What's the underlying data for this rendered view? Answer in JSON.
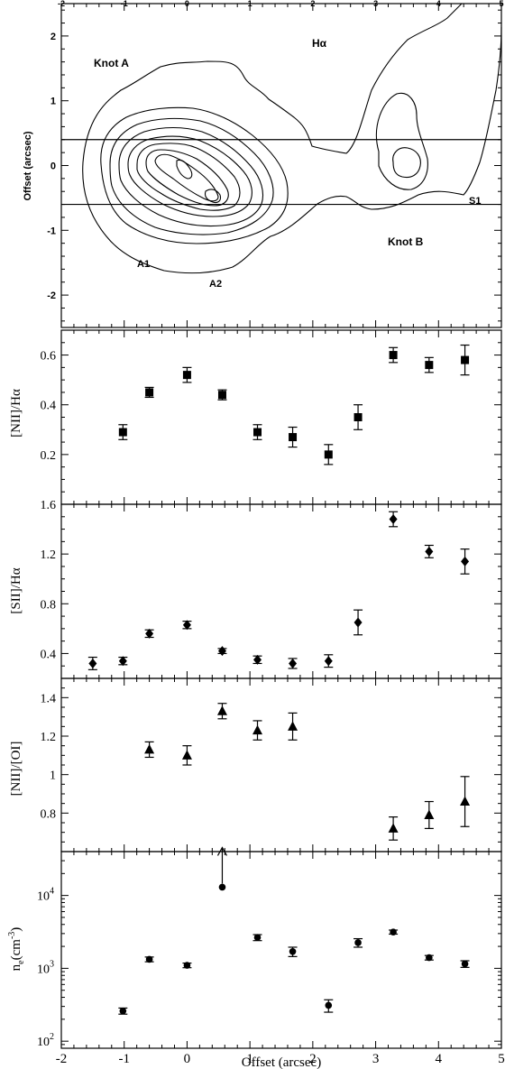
{
  "chart_data": [
    {
      "type": "contour",
      "title": "",
      "xlabel": "",
      "ylabel": "Offset (arcsec)",
      "xlim": [
        -2,
        5
      ],
      "ylim": [
        -2.5,
        2.5
      ],
      "x_ticks": [
        -2,
        -1,
        0,
        1,
        2,
        3,
        4,
        5
      ],
      "y_ticks": [
        -2,
        -1,
        0,
        1,
        2
      ],
      "annotations": [
        "Knot A",
        "Hα",
        "S1",
        "Knot B",
        "A1",
        "A2"
      ],
      "slit_lines_y": [
        0.4,
        -0.6
      ]
    },
    {
      "type": "scatter",
      "marker": "square",
      "ylabel": "[NII]/Hα",
      "xlim": [
        -2,
        5
      ],
      "ylim": [
        0,
        0.7
      ],
      "y_ticks": [
        0.2,
        0.4,
        0.6
      ],
      "y_tick_labels": [
        "0.2",
        "0.4",
        "0.6"
      ],
      "x": [
        -1.02,
        -0.6,
        0.0,
        0.56,
        1.12,
        1.68,
        2.25,
        2.72,
        3.28,
        3.85,
        4.42
      ],
      "y": [
        0.29,
        0.45,
        0.52,
        0.44,
        0.29,
        0.27,
        0.2,
        0.35,
        0.6,
        0.56,
        0.58
      ],
      "yerr": [
        0.03,
        0.02,
        0.03,
        0.02,
        0.03,
        0.04,
        0.04,
        0.05,
        0.03,
        0.03,
        0.06
      ]
    },
    {
      "type": "scatter",
      "marker": "diamond",
      "ylabel": "[SII]/Hα",
      "xlim": [
        -2,
        5
      ],
      "ylim": [
        0.2,
        1.6
      ],
      "y_ticks": [
        0.4,
        0.8,
        1.2,
        1.6
      ],
      "y_tick_labels": [
        "0.4",
        "0.8",
        "1.2",
        "1.6"
      ],
      "x": [
        -1.5,
        -1.02,
        -0.6,
        0.0,
        0.56,
        1.12,
        1.68,
        2.25,
        2.72,
        3.28,
        3.85,
        4.42
      ],
      "y": [
        0.32,
        0.34,
        0.56,
        0.63,
        0.42,
        0.35,
        0.32,
        0.34,
        0.65,
        1.48,
        1.22,
        1.14
      ],
      "yerr": [
        0.05,
        0.03,
        0.03,
        0.03,
        0.02,
        0.03,
        0.04,
        0.05,
        0.1,
        0.06,
        0.05,
        0.1
      ]
    },
    {
      "type": "scatter",
      "marker": "triangle",
      "ylabel": "[NII]/[OI]",
      "xlim": [
        -2,
        5
      ],
      "ylim": [
        0.6,
        1.5
      ],
      "y_ticks": [
        0.8,
        1.0,
        1.2,
        1.4
      ],
      "y_tick_labels": [
        "0.8",
        "1",
        "1.2",
        "1.4"
      ],
      "x": [
        -0.6,
        0.0,
        0.56,
        1.12,
        1.68,
        3.28,
        3.85,
        4.42
      ],
      "y": [
        1.13,
        1.1,
        1.33,
        1.23,
        1.25,
        0.72,
        0.79,
        0.86
      ],
      "yerr": [
        0.04,
        0.05,
        0.04,
        0.05,
        0.07,
        0.06,
        0.07,
        0.13
      ]
    },
    {
      "type": "scatter",
      "marker": "circle",
      "ylabel": "n",
      "ylabel_subscript": "e",
      "ylabel_units": "(cm",
      "ylabel_units_sup": "-3",
      "ylabel_units_close": ")",
      "xlabel": "Offset (arcsec)",
      "y_scale": "log",
      "xlim": [
        -2,
        5
      ],
      "ylim": [
        80,
        40000
      ],
      "x_ticks": [
        -2,
        -1,
        0,
        1,
        2,
        3,
        4,
        5
      ],
      "x_tick_labels": [
        "-2",
        "-1",
        "0",
        "1",
        "2",
        "3",
        "4",
        "5"
      ],
      "y_ticks": [
        100,
        1000,
        10000
      ],
      "y_tick_labels": [
        {
          "base": "10",
          "exp": "2"
        },
        {
          "base": "10",
          "exp": "3"
        },
        {
          "base": "10",
          "exp": "4"
        }
      ],
      "x": [
        -1.02,
        -0.6,
        0.0,
        0.56,
        1.12,
        1.68,
        2.25,
        2.72,
        3.28,
        3.85,
        4.42
      ],
      "y": [
        260,
        1330,
        1100,
        13000,
        2650,
        1700,
        310,
        2250,
        3150,
        1400,
        1150
      ],
      "y_low": [
        235,
        1230,
        1020,
        13000,
        2400,
        1450,
        250,
        1950,
        2950,
        1300,
        1030
      ],
      "y_high": [
        285,
        1430,
        1180,
        13000,
        2900,
        1950,
        370,
        2550,
        3350,
        1500,
        1270
      ],
      "lower_limit_index": 3
    }
  ]
}
